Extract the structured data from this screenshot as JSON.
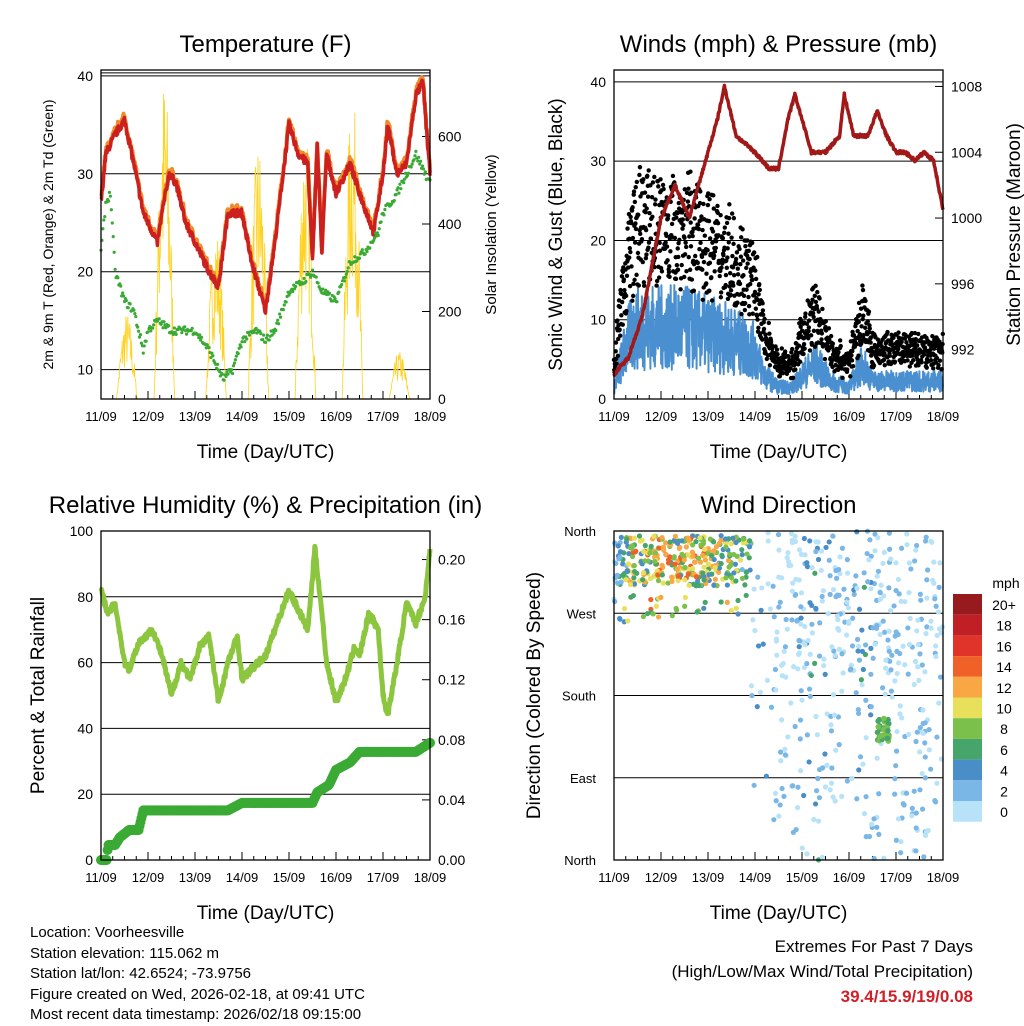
{
  "chart_data": [
    {
      "type": "line",
      "title": "Temperature (F)",
      "xlabel": "Time (Day/UTC)",
      "ylabel": "2m & 9m T (Red, Orange) & 2m Td (Green)",
      "ylabel_right": "Solar Insolation (Yellow)",
      "xticks": [
        "11/09",
        "12/09",
        "13/09",
        "14/09",
        "15/09",
        "16/09",
        "17/09",
        "18/09"
      ],
      "yticks": [
        10,
        20,
        30,
        40
      ],
      "yticks_right": [
        0,
        200,
        400,
        600
      ],
      "ylim": [
        7,
        40.6
      ],
      "ylim_right": [
        0,
        752
      ],
      "xlim_days": [
        0,
        7
      ],
      "series": [
        {
          "name": "2m T",
          "color": "#cc1f1f",
          "points": [
            [
              0,
              27
            ],
            [
              0.1,
              32
            ],
            [
              0.3,
              34
            ],
            [
              0.5,
              35.5
            ],
            [
              0.7,
              31
            ],
            [
              0.9,
              26
            ],
            [
              1.1,
              24
            ],
            [
              1.2,
              23
            ],
            [
              1.3,
              26
            ],
            [
              1.45,
              30
            ],
            [
              1.6,
              29
            ],
            [
              1.8,
              25
            ],
            [
              2.0,
              23
            ],
            [
              2.3,
              20
            ],
            [
              2.5,
              18.5
            ],
            [
              2.7,
              26
            ],
            [
              3.0,
              26
            ],
            [
              3.2,
              21
            ],
            [
              3.5,
              16
            ],
            [
              3.7,
              23
            ],
            [
              4.0,
              35
            ],
            [
              4.2,
              32
            ],
            [
              4.4,
              31
            ],
            [
              4.5,
              21
            ],
            [
              4.6,
              33
            ],
            [
              4.7,
              22
            ],
            [
              4.8,
              32
            ],
            [
              5.0,
              28
            ],
            [
              5.2,
              30
            ],
            [
              5.3,
              31
            ],
            [
              5.5,
              28
            ],
            [
              5.8,
              24
            ],
            [
              6.0,
              30
            ],
            [
              6.1,
              35
            ],
            [
              6.3,
              30
            ],
            [
              6.5,
              31
            ],
            [
              6.7,
              38
            ],
            [
              6.85,
              39.4
            ],
            [
              6.95,
              33
            ],
            [
              7.0,
              30
            ]
          ]
        },
        {
          "name": "9m T",
          "color": "#f08a2a",
          "offset": 0.6
        },
        {
          "name": "2m Td",
          "color": "#3aaa35",
          "points": [
            [
              0,
              22
            ],
            [
              0.1,
              27
            ],
            [
              0.2,
              28
            ],
            [
              0.3,
              20
            ],
            [
              0.5,
              17
            ],
            [
              0.7,
              16
            ],
            [
              0.9,
              12
            ],
            [
              1.0,
              14
            ],
            [
              1.2,
              15
            ],
            [
              1.5,
              14
            ],
            [
              1.7,
              14
            ],
            [
              2.0,
              14
            ],
            [
              2.3,
              12
            ],
            [
              2.6,
              9
            ],
            [
              2.8,
              10
            ],
            [
              3.0,
              13
            ],
            [
              3.3,
              14
            ],
            [
              3.5,
              13
            ],
            [
              3.7,
              14
            ],
            [
              4.0,
              18
            ],
            [
              4.3,
              19
            ],
            [
              4.5,
              20
            ],
            [
              4.7,
              18
            ],
            [
              5.0,
              17
            ],
            [
              5.3,
              21
            ],
            [
              5.6,
              22
            ],
            [
              5.9,
              24
            ],
            [
              6.0,
              26
            ],
            [
              6.3,
              28
            ],
            [
              6.5,
              30
            ],
            [
              6.7,
              32
            ],
            [
              7.0,
              29
            ]
          ]
        },
        {
          "name": "Solar",
          "color": "#ffd21f",
          "peaks": [
            [
              0.55,
              200
            ],
            [
              1.35,
              750
            ],
            [
              2.45,
              400
            ],
            [
              3.35,
              600
            ],
            [
              4.35,
              630
            ],
            [
              5.35,
              700
            ],
            [
              6.35,
              110
            ]
          ]
        }
      ]
    },
    {
      "type": "scatter",
      "title": "Winds (mph) & Pressure (mb)",
      "xlabel": "Time (Day/UTC)",
      "ylabel": "Sonic Wind & Gust (Blue, Black)",
      "ylabel_right": "Station Pressure (Maroon)",
      "xticks": [
        "11/09",
        "12/09",
        "13/09",
        "14/09",
        "15/09",
        "16/09",
        "17/09",
        "18/09"
      ],
      "yticks": [
        0,
        10,
        20,
        30,
        40
      ],
      "yticks_right": [
        992,
        996,
        1000,
        1004,
        1008
      ],
      "ylim": [
        0,
        41.5
      ],
      "ylim_right": [
        989,
        1009
      ],
      "wind_mean": [
        [
          0,
          2
        ],
        [
          0.3,
          10
        ],
        [
          0.5,
          12
        ],
        [
          1.0,
          12
        ],
        [
          1.5,
          12
        ],
        [
          2.0,
          11
        ],
        [
          2.5,
          10
        ],
        [
          3.0,
          8
        ],
        [
          3.2,
          4
        ],
        [
          3.5,
          2
        ],
        [
          3.8,
          2
        ],
        [
          4.0,
          4
        ],
        [
          4.3,
          6
        ],
        [
          4.6,
          3
        ],
        [
          5.0,
          2
        ],
        [
          5.3,
          6
        ],
        [
          5.5,
          3
        ],
        [
          6.0,
          3
        ],
        [
          6.5,
          3
        ],
        [
          7.0,
          3
        ]
      ],
      "pressure": [
        [
          0,
          990.5
        ],
        [
          0.3,
          991.5
        ],
        [
          0.6,
          994
        ],
        [
          1.0,
          1000
        ],
        [
          1.3,
          1002
        ],
        [
          1.6,
          1000
        ],
        [
          2.0,
          1004
        ],
        [
          2.2,
          1006
        ],
        [
          2.35,
          1008
        ],
        [
          2.6,
          1005
        ],
        [
          2.8,
          1004.5
        ],
        [
          3.0,
          1004
        ],
        [
          3.3,
          1003
        ],
        [
          3.5,
          1003
        ],
        [
          3.7,
          1006
        ],
        [
          3.85,
          1007.5
        ],
        [
          4.0,
          1006
        ],
        [
          4.2,
          1004
        ],
        [
          4.5,
          1004
        ],
        [
          4.8,
          1005
        ],
        [
          4.9,
          1007.5
        ],
        [
          5.1,
          1005
        ],
        [
          5.4,
          1005
        ],
        [
          5.6,
          1006.5
        ],
        [
          5.8,
          1005
        ],
        [
          6.0,
          1004
        ],
        [
          6.2,
          1004
        ],
        [
          6.4,
          1003.5
        ],
        [
          6.6,
          1004
        ],
        [
          6.8,
          1003.5
        ],
        [
          7.0,
          1000.5
        ]
      ],
      "colors": {
        "wind": "#4a90d0",
        "gust": "#000000",
        "pressure": "#a01818"
      }
    },
    {
      "type": "line",
      "title": "Relative Humidity (%) & Precipitation (in)",
      "xlabel": "Time (Day/UTC)",
      "ylabel": "Percent & Total Rainfall",
      "xticks": [
        "11/09",
        "12/09",
        "13/09",
        "14/09",
        "15/09",
        "16/09",
        "17/09",
        "18/09"
      ],
      "yticks": [
        0,
        20,
        40,
        60,
        80,
        100
      ],
      "yticks_right": [
        "0.00",
        "0.04",
        "0.08",
        "0.12",
        "0.16",
        "0.20"
      ],
      "ylim": [
        0,
        100
      ],
      "ylim_right": [
        0,
        0.219
      ],
      "rh": [
        [
          0,
          82
        ],
        [
          0.15,
          75
        ],
        [
          0.3,
          78
        ],
        [
          0.5,
          60
        ],
        [
          0.6,
          58
        ],
        [
          0.8,
          66
        ],
        [
          1.1,
          70
        ],
        [
          1.3,
          62
        ],
        [
          1.5,
          50
        ],
        [
          1.7,
          60
        ],
        [
          1.9,
          55
        ],
        [
          2.1,
          65
        ],
        [
          2.3,
          68
        ],
        [
          2.5,
          48
        ],
        [
          2.7,
          60
        ],
        [
          2.9,
          68
        ],
        [
          3.0,
          55
        ],
        [
          3.2,
          58
        ],
        [
          3.5,
          62
        ],
        [
          3.7,
          70
        ],
        [
          4.0,
          82
        ],
        [
          4.2,
          76
        ],
        [
          4.4,
          70
        ],
        [
          4.5,
          86
        ],
        [
          4.55,
          95
        ],
        [
          4.7,
          75
        ],
        [
          4.8,
          60
        ],
        [
          5.0,
          48
        ],
        [
          5.2,
          55
        ],
        [
          5.4,
          65
        ],
        [
          5.5,
          62
        ],
        [
          5.7,
          75
        ],
        [
          5.9,
          70
        ],
        [
          6.0,
          50
        ],
        [
          6.1,
          44
        ],
        [
          6.3,
          60
        ],
        [
          6.5,
          78
        ],
        [
          6.7,
          72
        ],
        [
          6.9,
          80
        ],
        [
          7.0,
          95
        ]
      ],
      "precip": [
        [
          0,
          0
        ],
        [
          0.12,
          0
        ],
        [
          0.15,
          0.01
        ],
        [
          0.3,
          0.01
        ],
        [
          0.4,
          0.015
        ],
        [
          0.6,
          0.02
        ],
        [
          0.8,
          0.02
        ],
        [
          0.9,
          0.033
        ],
        [
          2.7,
          0.033
        ],
        [
          3.0,
          0.038
        ],
        [
          4.5,
          0.038
        ],
        [
          4.6,
          0.045
        ],
        [
          4.85,
          0.05
        ],
        [
          5.0,
          0.06
        ],
        [
          5.3,
          0.065
        ],
        [
          5.5,
          0.072
        ],
        [
          6.7,
          0.072
        ],
        [
          7.0,
          0.078
        ]
      ],
      "colors": {
        "rh": "#8cc63f",
        "precip": "#3aaa35"
      }
    },
    {
      "type": "scatter",
      "title": "Wind Direction",
      "xlabel": "Time (Day/UTC)",
      "ylabel": "Direction (Colored By Speed)",
      "xticks": [
        "11/09",
        "12/09",
        "13/09",
        "14/09",
        "15/09",
        "16/09",
        "17/09",
        "18/09"
      ],
      "yticks": [
        "North",
        "East",
        "South",
        "West",
        "North"
      ],
      "ylim": [
        0,
        360
      ],
      "legend": {
        "title": "mph",
        "labels": [
          "20+",
          "18",
          "16",
          "14",
          "12",
          "10",
          "8",
          "6",
          "4",
          "2",
          "0"
        ],
        "colors": [
          "#961a1e",
          "#c01f26",
          "#e03329",
          "#f06128",
          "#f9a644",
          "#e8e05a",
          "#7cc04c",
          "#46a56b",
          "#4a8ec8",
          "#7ab6e6",
          "#b7e2f8"
        ]
      },
      "placement": "right"
    }
  ],
  "info": {
    "location": "Location: Voorheesville",
    "elevation": "Station elevation: 115.062 m",
    "latlon": "Station lat/lon: 42.6524; -73.9756",
    "created": "Figure created on Wed, 2026-02-18, at 09:41 UTC",
    "recent": "Most recent data timestamp: 2026/02/18 09:15:00"
  },
  "extremes": {
    "title": "Extremes For Past 7 Days",
    "subtitle": "(High/Low/Max Wind/Total Precipitation)",
    "values": "39.4/15.9/19/0.08"
  }
}
